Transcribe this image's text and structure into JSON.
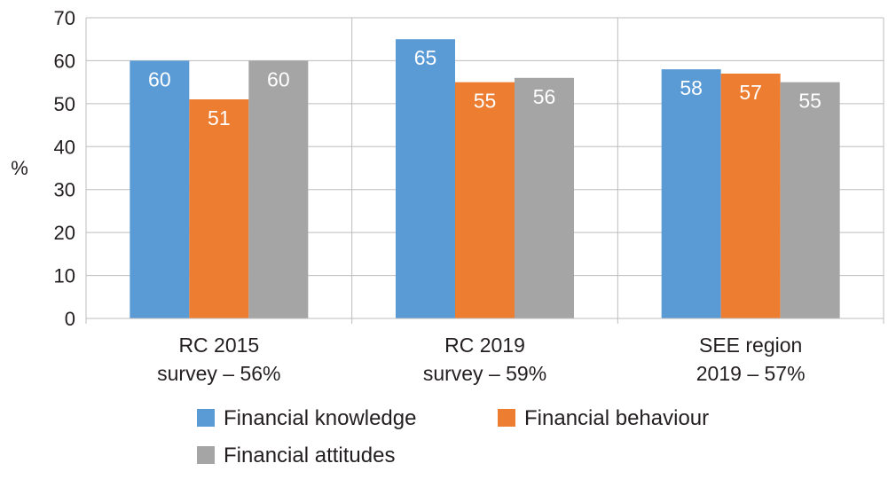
{
  "chart_data": {
    "type": "bar",
    "title": "",
    "xlabel": "",
    "ylabel": "%",
    "ylim": [
      0,
      70
    ],
    "yticks": [
      0,
      10,
      20,
      30,
      40,
      50,
      60,
      70
    ],
    "grid": true,
    "legend_position": "bottom",
    "categories": [
      [
        "RC 2015",
        "survey – 56%"
      ],
      [
        "RC 2019",
        "survey – 59%"
      ],
      [
        "SEE region",
        "2019 – 57%"
      ]
    ],
    "series": [
      {
        "name": "Financial knowledge",
        "color": "#5b9bd5",
        "values": [
          60,
          65,
          58
        ]
      },
      {
        "name": "Financial behaviour",
        "color": "#ed7d31",
        "values": [
          51,
          55,
          57
        ]
      },
      {
        "name": "Financial attitudes",
        "color": "#a5a5a5",
        "values": [
          60,
          56,
          55
        ]
      }
    ]
  }
}
